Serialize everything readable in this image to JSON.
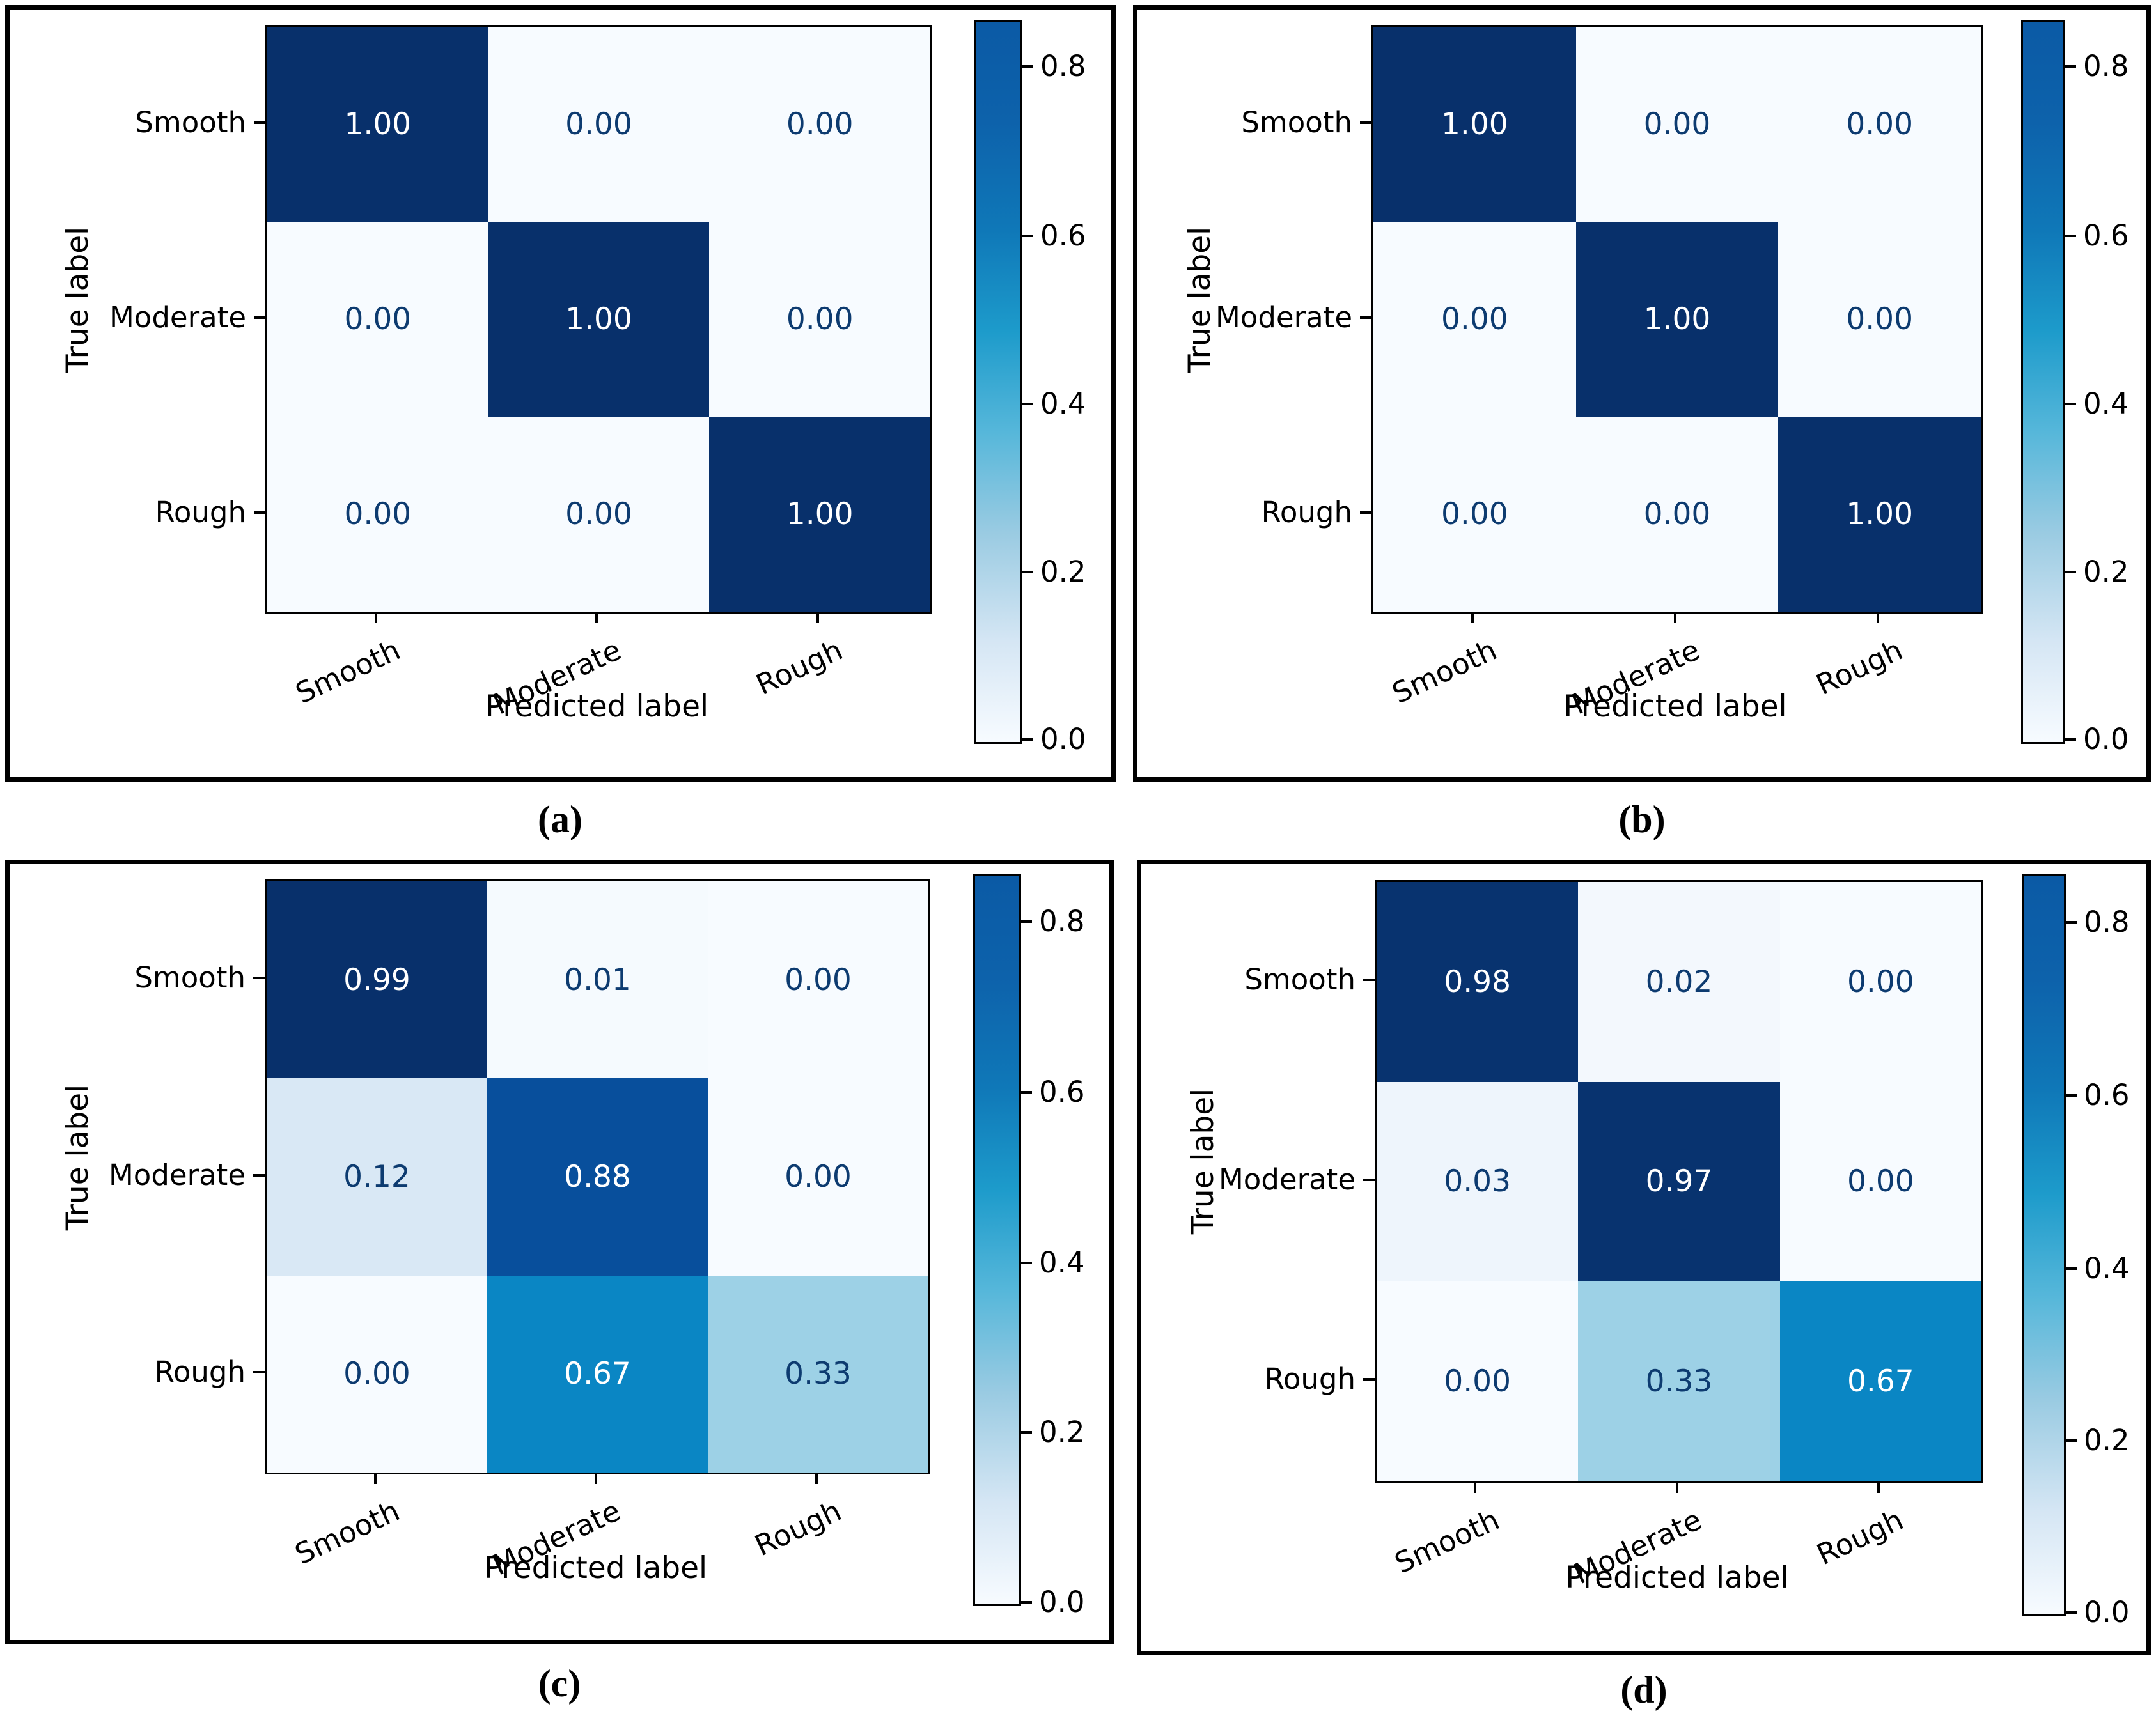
{
  "page": {
    "background": "#ffffff"
  },
  "shared": {
    "x_axis_label": "Predicted label",
    "y_axis_label": "True label",
    "classes": [
      "Smooth",
      "Moderate",
      "Rough"
    ],
    "colorbar": {
      "tick_labels": [
        "0.8",
        "0.6",
        "0.4",
        "0.2",
        "0.0"
      ],
      "tick_fractions_from_top": [
        0.065,
        0.3,
        0.534,
        0.767,
        1.0
      ],
      "gradient_bottom_to_top": [
        "#f7fbff",
        "#d5e6f4",
        "#9acbe2",
        "#56b7da",
        "#1d9bcb",
        "#0f78b8",
        "#0d62ab",
        "#0b5aa5"
      ]
    },
    "value_colors": {
      "0.00": "#f7fbff",
      "0.01": "#f5fafe",
      "0.02": "#f3f8fd",
      "0.03": "#eef5fc",
      "0.12": "#d9e8f5",
      "0.33": "#9dd1e6",
      "0.67": "#0a86c4",
      "0.88": "#084f9c",
      "0.97": "#08336f",
      "0.98": "#08336f",
      "0.99": "#08306b",
      "1.00": "#08306b"
    },
    "cell_text_dark": "#0d3b70",
    "cell_text_light": "#ffffff",
    "light_text_threshold": 0.6
  },
  "panels": [
    {
      "caption": "(a)",
      "matrix_labels": [
        [
          "1.00",
          "0.00",
          "0.00"
        ],
        [
          "0.00",
          "1.00",
          "0.00"
        ],
        [
          "0.00",
          "0.00",
          "1.00"
        ]
      ]
    },
    {
      "caption": "(b)",
      "matrix_labels": [
        [
          "1.00",
          "0.00",
          "0.00"
        ],
        [
          "0.00",
          "1.00",
          "0.00"
        ],
        [
          "0.00",
          "0.00",
          "1.00"
        ]
      ]
    },
    {
      "caption": "(c)",
      "matrix_labels": [
        [
          "0.99",
          "0.01",
          "0.00"
        ],
        [
          "0.12",
          "0.88",
          "0.00"
        ],
        [
          "0.00",
          "0.67",
          "0.33"
        ]
      ]
    },
    {
      "caption": "(d)",
      "matrix_labels": [
        [
          "0.98",
          "0.02",
          "0.00"
        ],
        [
          "0.03",
          "0.97",
          "0.00"
        ],
        [
          "0.00",
          "0.33",
          "0.67"
        ]
      ]
    }
  ],
  "chart_data": [
    {
      "type": "heatmap",
      "title": "(a)",
      "x_categories": [
        "Smooth",
        "Moderate",
        "Rough"
      ],
      "y_categories": [
        "Smooth",
        "Moderate",
        "Rough"
      ],
      "xlabel": "Predicted label",
      "ylabel": "True label",
      "values": [
        [
          1.0,
          0.0,
          0.0
        ],
        [
          0.0,
          1.0,
          0.0
        ],
        [
          0.0,
          0.0,
          1.0
        ]
      ],
      "colormap": "Blues",
      "colorbar_ticks": [
        0.0,
        0.2,
        0.4,
        0.6,
        0.8
      ],
      "legend_position": "right"
    },
    {
      "type": "heatmap",
      "title": "(b)",
      "x_categories": [
        "Smooth",
        "Moderate",
        "Rough"
      ],
      "y_categories": [
        "Smooth",
        "Moderate",
        "Rough"
      ],
      "xlabel": "Predicted label",
      "ylabel": "True label",
      "values": [
        [
          1.0,
          0.0,
          0.0
        ],
        [
          0.0,
          1.0,
          0.0
        ],
        [
          0.0,
          0.0,
          1.0
        ]
      ],
      "colormap": "Blues",
      "colorbar_ticks": [
        0.0,
        0.2,
        0.4,
        0.6,
        0.8
      ],
      "legend_position": "right"
    },
    {
      "type": "heatmap",
      "title": "(c)",
      "x_categories": [
        "Smooth",
        "Moderate",
        "Rough"
      ],
      "y_categories": [
        "Smooth",
        "Moderate",
        "Rough"
      ],
      "xlabel": "Predicted label",
      "ylabel": "True label",
      "values": [
        [
          0.99,
          0.01,
          0.0
        ],
        [
          0.12,
          0.88,
          0.0
        ],
        [
          0.0,
          0.67,
          0.33
        ]
      ],
      "colormap": "Blues",
      "colorbar_ticks": [
        0.0,
        0.2,
        0.4,
        0.6,
        0.8
      ],
      "legend_position": "right"
    },
    {
      "type": "heatmap",
      "title": "(d)",
      "x_categories": [
        "Smooth",
        "Moderate",
        "Rough"
      ],
      "y_categories": [
        "Smooth",
        "Moderate",
        "Rough"
      ],
      "xlabel": "Predicted label",
      "ylabel": "True label",
      "values": [
        [
          0.98,
          0.02,
          0.0
        ],
        [
          0.03,
          0.97,
          0.0
        ],
        [
          0.0,
          0.33,
          0.67
        ]
      ],
      "colormap": "Blues",
      "colorbar_ticks": [
        0.0,
        0.2,
        0.4,
        0.6,
        0.8
      ],
      "legend_position": "right"
    }
  ]
}
